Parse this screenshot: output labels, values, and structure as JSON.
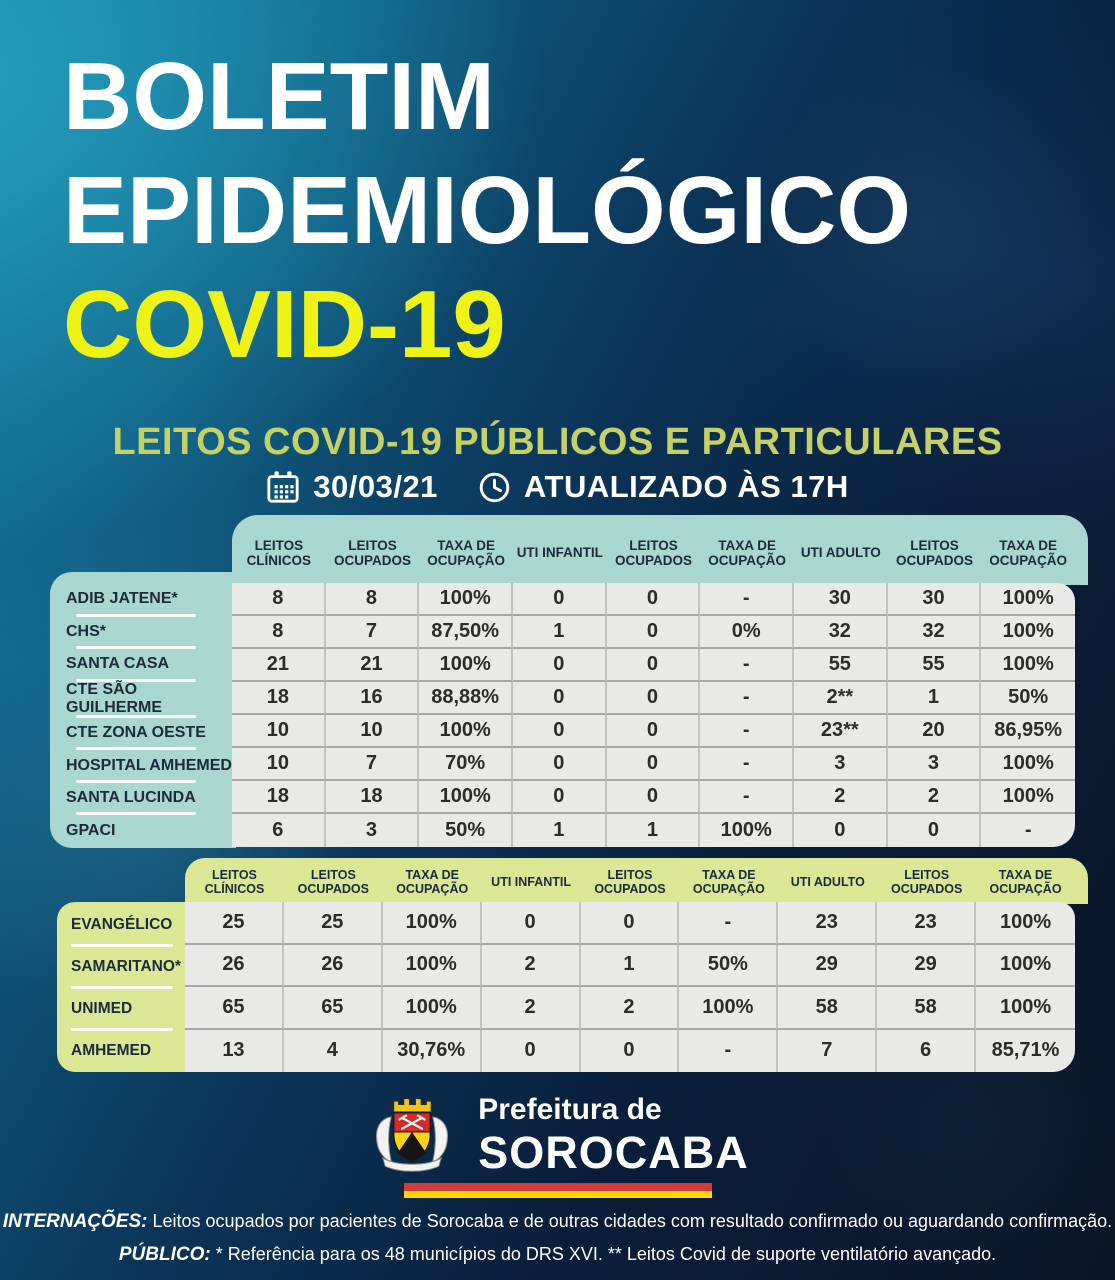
{
  "page": {
    "title_line1": "BOLETIM",
    "title_line2": "EPIDEMIOLÓGICO",
    "title_line3": "COVID-19",
    "subtitle": "LEITOS COVID-19 PÚBLICOS E PARTICULARES",
    "date": "30/03/21",
    "updated": "ATUALIZADO ÀS 17H"
  },
  "icons": {
    "date": "calendar-icon",
    "updated": "clock-icon"
  },
  "public_table": {
    "columns": [
      "LEITOS CLÍNICOS",
      "LEITOS OCUPADOS",
      "TAXA DE OCUPAÇÃO",
      "UTI INFANTIL",
      "LEITOS OCUPADOS",
      "TAXA DE OCUPAÇÃO",
      "UTI ADULTO",
      "LEITOS OCUPADOS",
      "TAXA DE OCUPAÇÃO"
    ],
    "rows": [
      {
        "name": "ADIB JATENE*",
        "values": [
          "8",
          "8",
          "100%",
          "0",
          "0",
          "-",
          "30",
          "30",
          "100%"
        ]
      },
      {
        "name": "CHS*",
        "values": [
          "8",
          "7",
          "87,50%",
          "1",
          "0",
          "0%",
          "32",
          "32",
          "100%"
        ]
      },
      {
        "name": "SANTA CASA",
        "values": [
          "21",
          "21",
          "100%",
          "0",
          "0",
          "-",
          "55",
          "55",
          "100%"
        ]
      },
      {
        "name": "CTE SÃO GUILHERME",
        "values": [
          "18",
          "16",
          "88,88%",
          "0",
          "0",
          "-",
          "2**",
          "1",
          "50%"
        ]
      },
      {
        "name": "CTE ZONA OESTE",
        "values": [
          "10",
          "10",
          "100%",
          "0",
          "0",
          "-",
          "23**",
          "20",
          "86,95%"
        ]
      },
      {
        "name": "HOSPITAL AMHEMED",
        "values": [
          "10",
          "7",
          "70%",
          "0",
          "0",
          "-",
          "3",
          "3",
          "100%"
        ]
      },
      {
        "name": "SANTA LUCINDA",
        "values": [
          "18",
          "18",
          "100%",
          "0",
          "0",
          "-",
          "2",
          "2",
          "100%"
        ]
      },
      {
        "name": "GPACI",
        "values": [
          "6",
          "3",
          "50%",
          "1",
          "1",
          "100%",
          "0",
          "0",
          "-"
        ]
      }
    ]
  },
  "private_table": {
    "columns": [
      "LEITOS CLÍNICOS",
      "LEITOS OCUPADOS",
      "TAXA DE OCUPAÇÃO",
      "UTI INFANTIL",
      "LEITOS OCUPADOS",
      "TAXA DE OCUPAÇÃO",
      "UTI ADULTO",
      "LEITOS OCUPADOS",
      "TAXA DE OCUPAÇÃO"
    ],
    "rows": [
      {
        "name": "EVANGÉLICO",
        "values": [
          "25",
          "25",
          "100%",
          "0",
          "0",
          "-",
          "23",
          "23",
          "100%"
        ]
      },
      {
        "name": "SAMARITANO*",
        "values": [
          "26",
          "26",
          "100%",
          "2",
          "1",
          "50%",
          "29",
          "29",
          "100%"
        ]
      },
      {
        "name": "UNIMED",
        "values": [
          "65",
          "65",
          "100%",
          "2",
          "2",
          "100%",
          "58",
          "58",
          "100%"
        ]
      },
      {
        "name": "AMHEMED",
        "values": [
          "13",
          "4",
          "30,76%",
          "0",
          "0",
          "-",
          "7",
          "6",
          "85,71%"
        ]
      }
    ]
  },
  "logo": {
    "line1": "Prefeitura de",
    "line2": "SOROCABA"
  },
  "footer": {
    "label1": "INTERNAÇÕES:",
    "text1": " Leitos ocupados por pacientes de Sorocaba e de outras cidades com resultado confirmado ou aguardando confirmação.",
    "label2": "PÚBLICO:",
    "text2": " * Referência para os 48 municípios do DRS XVI. ** Leitos Covid de suporte ventilatório avançado."
  },
  "colors": {
    "background_dark": "#0a1b31",
    "background_teal": "#1f8fb1",
    "covid_yellow": "#eef215",
    "subtitle_green": "#c3d166",
    "public_band_teal": "#a9d6ce",
    "private_band_green": "#dce795",
    "panel_gray": "#e9e9e7",
    "band_text": "#1d2a3a",
    "cell_text": "#2d2c2b",
    "flag_red": "#d23c3c",
    "flag_yellow": "#ffd800",
    "crest_red": "#d42b2b",
    "crest_yellow": "#f2c713"
  }
}
